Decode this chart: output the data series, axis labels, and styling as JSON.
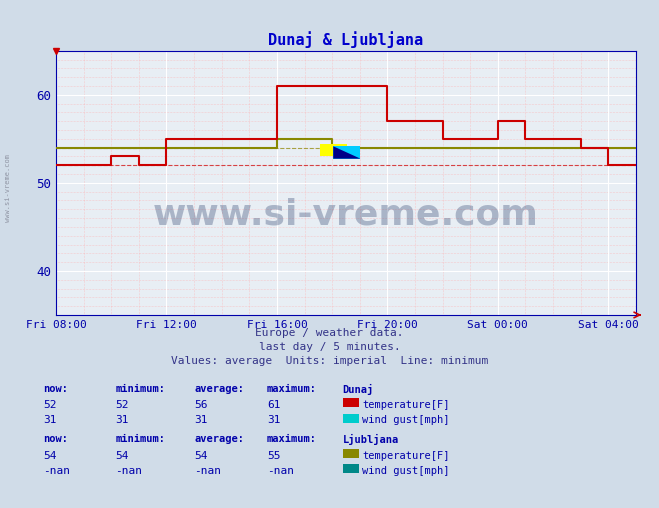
{
  "title": "Dunaj & Ljubljana",
  "title_color": "#0000cc",
  "bg_color": "#d0dce8",
  "plot_bg_color": "#e8eef4",
  "xlabel_color": "#0000aa",
  "ylabel_color": "#0000aa",
  "ylim": [
    35,
    65
  ],
  "yticks": [
    40,
    50,
    60
  ],
  "xtick_labels": [
    "Fri 08:00",
    "Fri 12:00",
    "Fri 16:00",
    "Fri 20:00",
    "Sat 00:00",
    "Sat 04:00"
  ],
  "xtick_positions": [
    0,
    4,
    8,
    12,
    16,
    20
  ],
  "total_hours": 21,
  "watermark_text": "www.si-vreme.com",
  "watermark_color": "#1a3060",
  "watermark_alpha": 0.3,
  "subtitle_color": "#333388",
  "dunaj_temp_color": "#cc0000",
  "dunaj_windgust_color": "#00cccc",
  "ljubljana_temp_color": "#888800",
  "ljubljana_windgust_color": "#008888",
  "dunaj_temp_min_y": 52,
  "dunaj_windgust_val": 31,
  "ljubljana_temp_min_y": 54,
  "dunaj_temp_x": [
    0,
    2,
    2,
    3,
    3,
    4,
    4,
    8,
    8,
    12,
    12,
    14,
    14,
    16,
    16,
    17,
    17,
    19,
    19,
    20,
    20,
    21
  ],
  "dunaj_temp_y": [
    52,
    52,
    53,
    53,
    52,
    52,
    55,
    55,
    61,
    61,
    57,
    57,
    55,
    55,
    57,
    57,
    55,
    55,
    54,
    54,
    52,
    52
  ],
  "ljubljana_temp_x": [
    0,
    8,
    8,
    10,
    10,
    12,
    12,
    21
  ],
  "ljubljana_temp_y": [
    54,
    54,
    55,
    55,
    54,
    54,
    54,
    54
  ],
  "footer_lines": [
    "Europe / weather data.",
    "last day / 5 minutes.",
    "Values: average  Units: imperial  Line: minimum"
  ],
  "table_dunaj_label": "Dunaj",
  "table_ljubljana_label": "Ljubljana",
  "table_header": [
    "now:",
    "minimum:",
    "average:",
    "maximum:"
  ],
  "table_dunaj_temp": [
    "52",
    "52",
    "56",
    "61"
  ],
  "table_dunaj_windgust": [
    "31",
    "31",
    "31",
    "31"
  ],
  "table_ljubljana_temp": [
    "54",
    "54",
    "54",
    "55"
  ],
  "table_ljubljana_windgust": [
    "-nan",
    "-nan",
    "-nan",
    "-nan"
  ],
  "sidebar_text": "www.si-vreme.com"
}
